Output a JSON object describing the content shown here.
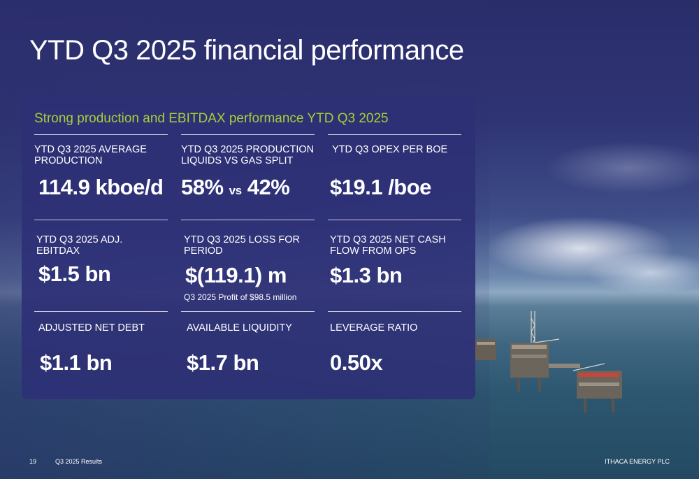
{
  "title": "YTD Q3 2025 financial performance",
  "subtitle": "Strong production and EBITDAX performance YTD Q3 2025",
  "metrics": [
    {
      "label": "YTD Q3 2025 AVERAGE PRODUCTION",
      "value": "114.9 kboe/d"
    },
    {
      "label": "YTD Q3 2025 PRODUCTION LIQUIDS vs GAS SPLIT",
      "value_a": "58%",
      "value_vs": "vs",
      "value_b": "42%"
    },
    {
      "label": "YTD Q3 OPEX PER BOE",
      "value": "$19.1 /boe"
    },
    {
      "label": "YTD Q3 2025 ADJ. EBITDAX",
      "value": "$1.5 bn"
    },
    {
      "label": "YTD Q3 2025 LOSS FOR PERIOD",
      "value": "$(119.1) m",
      "note": "Q3 2025 Profit of $98.5 million"
    },
    {
      "label": "YTD Q3 2025 NET CASH FLOW FROM OPS",
      "value": "$1.3 bn"
    },
    {
      "label": "ADJUSTED NET DEBT",
      "value": "$1.1 bn"
    },
    {
      "label": "AVAILABLE LIQUIDITY",
      "value": "$1.7 bn"
    },
    {
      "label": "LEVERAGE RATIO",
      "value": "0.50x"
    }
  ],
  "footer": {
    "page_number": "19",
    "section": "Q3 2025 Results",
    "company": "ITHACA ENERGY PLC"
  },
  "colors": {
    "accent": "#a6ce39",
    "card": "#2e3076",
    "background": "#2c2f6e"
  }
}
